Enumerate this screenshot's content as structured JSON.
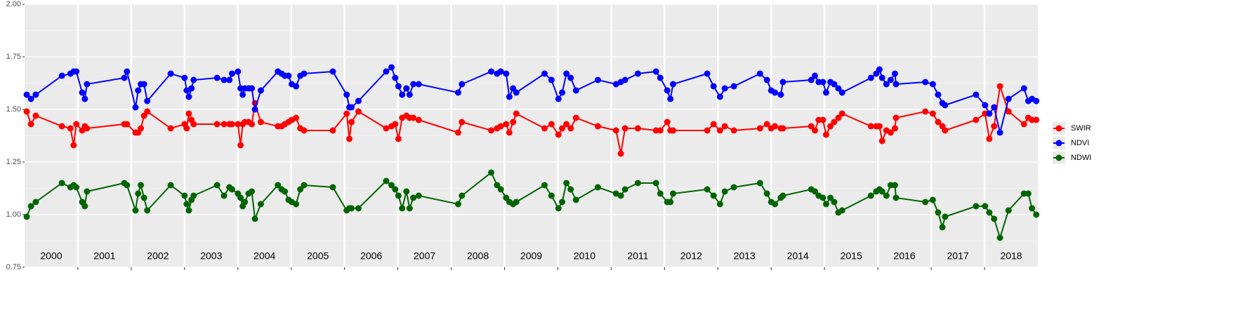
{
  "chart_data": {
    "type": "line",
    "xlim": [
      2000,
      2019
    ],
    "ylim": [
      0.75,
      2.0
    ],
    "yticks": [
      0.75,
      {
        "value": 1,
        "label": "1.00"
      },
      1.25,
      {
        "value": 1.5,
        "label": "1.50"
      },
      1.75,
      {
        "value": 2,
        "label": "2.00"
      }
    ],
    "years": [
      2000,
      2001,
      2002,
      2003,
      2004,
      2005,
      2006,
      2007,
      2008,
      2009,
      2010,
      2011,
      2012,
      2013,
      2014,
      2015,
      2016,
      2017,
      2018
    ],
    "grid": true,
    "legend": "right",
    "x": [
      2000.04,
      2000.12,
      2000.21,
      2000.7,
      2000.86,
      2000.92,
      2000.97,
      2001.08,
      2001.13,
      2001.17,
      2001.87,
      2001.92,
      2002.08,
      2002.13,
      2002.18,
      2002.24,
      2002.3,
      2002.74,
      2003.0,
      2003.04,
      2003.08,
      2003.13,
      2003.17,
      2003.61,
      2003.74,
      2003.84,
      2003.89,
      2004.0,
      2004.05,
      2004.09,
      2004.13,
      2004.2,
      2004.26,
      2004.32,
      2004.43,
      2004.75,
      2004.82,
      2004.88,
      2004.95,
      2005.01,
      2005.09,
      2005.17,
      2005.24,
      2005.78,
      2006.04,
      2006.09,
      2006.13,
      2006.26,
      2006.78,
      2006.88,
      2006.95,
      2007.01,
      2007.08,
      2007.16,
      2007.22,
      2007.29,
      2007.39,
      2008.13,
      2008.2,
      2008.75,
      2008.86,
      2008.93,
      2009.03,
      2009.09,
      2009.16,
      2009.22,
      2009.75,
      2009.88,
      2010.01,
      2010.08,
      2010.16,
      2010.24,
      2010.34,
      2010.75,
      2011.09,
      2011.18,
      2011.26,
      2011.5,
      2011.84,
      2011.92,
      2012.05,
      2012.11,
      2012.16,
      2012.8,
      2012.92,
      2013.04,
      2013.13,
      2013.3,
      2013.79,
      2013.92,
      2014.0,
      2014.07,
      2014.18,
      2014.22,
      2014.75,
      2014.82,
      2014.89,
      2014.97,
      2015.03,
      2015.11,
      2015.18,
      2015.26,
      2015.33,
      2015.87,
      2015.97,
      2016.03,
      2016.08,
      2016.16,
      2016.24,
      2016.32,
      2016.34,
      2016.89,
      2017.03,
      2017.13,
      2017.21,
      2017.26,
      2017.84,
      2018.01,
      2018.09,
      2018.18,
      2018.29,
      2018.45,
      2018.74,
      2018.82,
      2018.89,
      2018.97
    ],
    "series": [
      {
        "name": "SWIR",
        "color": "#ff0000",
        "values": [
          1.49,
          1.43,
          1.47,
          1.42,
          1.41,
          1.33,
          1.43,
          1.4,
          1.42,
          1.41,
          1.43,
          1.43,
          1.39,
          1.39,
          1.41,
          1.47,
          1.49,
          1.41,
          1.43,
          1.41,
          1.48,
          1.45,
          1.43,
          1.43,
          1.43,
          1.43,
          1.43,
          1.43,
          1.33,
          1.43,
          1.44,
          1.44,
          1.43,
          1.53,
          1.44,
          1.42,
          1.42,
          1.43,
          1.44,
          1.45,
          1.46,
          1.41,
          1.4,
          1.4,
          1.48,
          1.36,
          1.44,
          1.49,
          1.41,
          1.42,
          1.43,
          1.36,
          1.46,
          1.47,
          1.46,
          1.46,
          1.45,
          1.39,
          1.44,
          1.4,
          1.41,
          1.42,
          1.43,
          1.39,
          1.44,
          1.48,
          1.41,
          1.43,
          1.38,
          1.41,
          1.43,
          1.41,
          1.46,
          1.42,
          1.4,
          1.29,
          1.41,
          1.41,
          1.4,
          1.4,
          1.44,
          1.4,
          1.4,
          1.4,
          1.43,
          1.4,
          1.42,
          1.4,
          1.41,
          1.43,
          1.41,
          1.42,
          1.41,
          1.41,
          1.42,
          1.4,
          1.45,
          1.45,
          1.38,
          1.42,
          1.44,
          1.46,
          1.48,
          1.42,
          1.42,
          1.42,
          1.35,
          1.4,
          1.39,
          1.41,
          1.46,
          1.49,
          1.48,
          1.44,
          1.42,
          1.4,
          1.45,
          1.48,
          1.36,
          1.42,
          1.61,
          1.49,
          1.43,
          1.46,
          1.45,
          1.45
        ]
      },
      {
        "name": "NDVI",
        "color": "#0000ff",
        "values": [
          1.57,
          1.55,
          1.57,
          1.66,
          1.67,
          1.68,
          1.68,
          1.58,
          1.55,
          1.62,
          1.65,
          1.68,
          1.51,
          1.59,
          1.62,
          1.62,
          1.54,
          1.67,
          1.65,
          1.59,
          1.56,
          1.6,
          1.64,
          1.65,
          1.64,
          1.64,
          1.67,
          1.68,
          1.6,
          1.57,
          1.6,
          1.6,
          1.6,
          1.5,
          1.59,
          1.68,
          1.67,
          1.66,
          1.66,
          1.62,
          1.61,
          1.66,
          1.67,
          1.68,
          1.57,
          1.51,
          1.51,
          1.54,
          1.68,
          1.7,
          1.65,
          1.61,
          1.57,
          1.6,
          1.57,
          1.62,
          1.62,
          1.58,
          1.62,
          1.68,
          1.67,
          1.68,
          1.67,
          1.56,
          1.6,
          1.58,
          1.67,
          1.64,
          1.55,
          1.58,
          1.67,
          1.65,
          1.59,
          1.64,
          1.62,
          1.63,
          1.64,
          1.67,
          1.68,
          1.65,
          1.59,
          1.55,
          1.62,
          1.67,
          1.61,
          1.56,
          1.6,
          1.61,
          1.67,
          1.64,
          1.59,
          1.58,
          1.57,
          1.63,
          1.64,
          1.66,
          1.63,
          1.63,
          1.58,
          1.63,
          1.62,
          1.6,
          1.58,
          1.65,
          1.67,
          1.69,
          1.65,
          1.62,
          1.64,
          1.67,
          1.62,
          1.63,
          1.62,
          1.57,
          1.53,
          1.52,
          1.57,
          1.52,
          1.48,
          1.51,
          1.39,
          1.55,
          1.6,
          1.54,
          1.55,
          1.54
        ]
      },
      {
        "name": "NDWI",
        "color": "#006400",
        "values": [
          0.99,
          1.04,
          1.06,
          1.15,
          1.13,
          1.14,
          1.13,
          1.06,
          1.04,
          1.11,
          1.15,
          1.14,
          1.02,
          1.1,
          1.14,
          1.08,
          1.02,
          1.14,
          1.09,
          1.05,
          1.02,
          1.07,
          1.09,
          1.14,
          1.09,
          1.13,
          1.12,
          1.1,
          1.08,
          1.04,
          1.06,
          1.1,
          1.11,
          0.98,
          1.05,
          1.14,
          1.12,
          1.11,
          1.07,
          1.06,
          1.05,
          1.12,
          1.14,
          1.13,
          1.02,
          1.03,
          1.03,
          1.03,
          1.16,
          1.14,
          1.12,
          1.09,
          1.03,
          1.11,
          1.03,
          1.08,
          1.09,
          1.05,
          1.09,
          1.2,
          1.14,
          1.12,
          1.08,
          1.06,
          1.05,
          1.06,
          1.14,
          1.09,
          1.03,
          1.06,
          1.15,
          1.12,
          1.07,
          1.13,
          1.1,
          1.09,
          1.12,
          1.15,
          1.15,
          1.1,
          1.06,
          1.06,
          1.1,
          1.12,
          1.09,
          1.05,
          1.11,
          1.13,
          1.15,
          1.1,
          1.06,
          1.05,
          1.08,
          1.09,
          1.12,
          1.11,
          1.09,
          1.08,
          1.05,
          1.08,
          1.06,
          1.01,
          1.02,
          1.09,
          1.11,
          1.12,
          1.11,
          1.09,
          1.14,
          1.14,
          1.08,
          1.06,
          1.07,
          1.01,
          0.94,
          0.99,
          1.04,
          1.04,
          1.01,
          0.98,
          0.89,
          1.02,
          1.1,
          1.1,
          1.03,
          1.0
        ]
      }
    ]
  }
}
